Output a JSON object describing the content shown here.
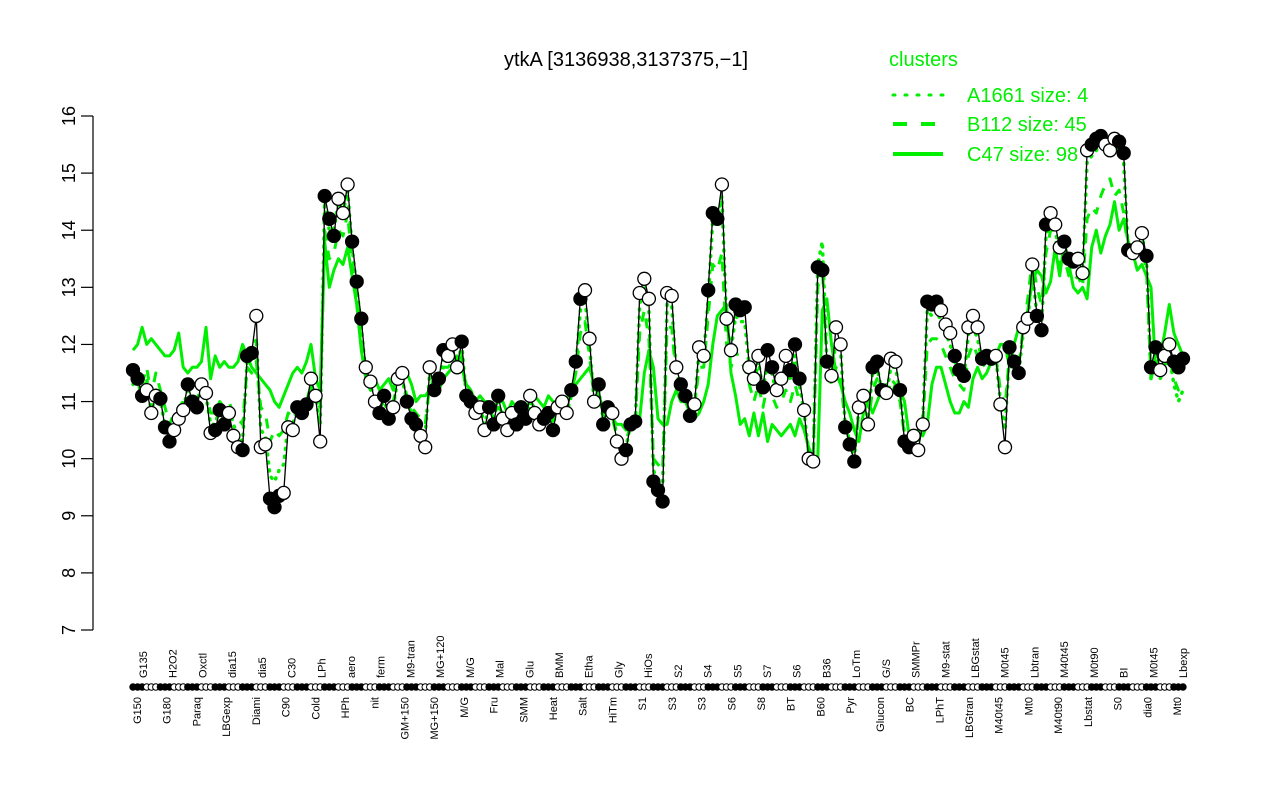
{
  "chart_data": {
    "type": "line",
    "title": "ytkA [3136938,3137375,−1]",
    "xlabel": "",
    "ylabel": "",
    "ylim": [
      7,
      16
    ],
    "yticks": [
      7,
      8,
      9,
      10,
      11,
      12,
      13,
      14,
      15,
      16
    ],
    "grid": false,
    "legend": {
      "title": "clusters",
      "position": "top-right",
      "color": "#00ee00",
      "entries": [
        {
          "label": "A1661 size: 4",
          "style": "dotted"
        },
        {
          "label": "B112 size: 45",
          "style": "dashed"
        },
        {
          "label": "C47 size: 98",
          "style": "solid"
        }
      ]
    },
    "x_labels_top": [
      "G135",
      "H2O2",
      "Oxctl",
      "dia15",
      "dia5",
      "C30",
      "LPh",
      "aero",
      "ferm",
      "M9-tran",
      "MG+120",
      "M/G",
      "Mal",
      "Glu",
      "BMM",
      "Etha",
      "Gly",
      "HiOs",
      "S2",
      "S4",
      "S5",
      "S7",
      "S6",
      "B36",
      "LoTm",
      "G/S",
      "SMMPr",
      "M9-stat",
      "LBGstat",
      "M0t45",
      "Lbtran",
      "M40t45",
      "M0t90",
      "BI",
      "M0t45",
      "Lbexp"
    ],
    "x_labels_bottom": [
      "G150",
      "G180",
      "Paraq",
      "LBGexp",
      "Diami",
      "C90",
      "Cold",
      "HPh",
      "nit",
      "GM+150",
      "MG+150",
      "M/G",
      "Fru",
      "SMM",
      "Heat",
      "Salt",
      "HiTm",
      "S1",
      "S3",
      "S3",
      "S6",
      "S8",
      "BT",
      "B60",
      "Pyr",
      "Glucon",
      "BC",
      "LPhT",
      "LBGtran",
      "M40t45",
      "Mt0",
      "M40t90",
      "Lbstat",
      "S0",
      "dia0",
      "Mt0"
    ],
    "series": [
      {
        "name": "ytkA expression",
        "color": "#000000",
        "values": [
          11.55,
          11.4,
          11.1,
          11.2,
          10.8,
          11.1,
          11.05,
          10.55,
          10.3,
          10.5,
          10.7,
          10.85,
          11.3,
          11.0,
          10.9,
          11.3,
          11.15,
          10.45,
          10.5,
          10.85,
          10.6,
          10.8,
          10.4,
          10.2,
          10.15,
          11.8,
          11.85,
          12.5,
          10.2,
          10.25,
          9.3,
          9.15,
          9.35,
          9.4,
          10.55,
          10.5,
          10.9,
          10.8,
          10.95,
          11.4,
          11.1,
          10.3,
          14.6,
          14.2,
          13.9,
          14.55,
          14.3,
          14.8,
          13.8,
          13.1,
          12.45,
          11.6,
          11.35,
          11.0,
          10.8,
          11.1,
          10.7,
          10.9,
          11.4,
          11.5,
          11.0,
          10.7,
          10.6,
          10.4,
          10.2,
          11.6,
          11.2,
          11.4,
          11.9,
          11.8,
          12.0,
          11.6,
          12.05,
          11.1,
          11.0,
          10.8,
          10.9,
          10.5,
          10.9,
          10.6,
          11.1,
          10.7,
          10.5,
          10.8,
          10.6,
          10.9,
          10.7,
          11.1,
          10.8,
          10.6,
          10.7,
          10.8,
          10.5,
          10.9,
          11.0,
          10.8,
          11.2,
          11.7,
          12.8,
          12.95,
          12.1,
          11.0,
          11.3,
          10.6,
          10.9,
          10.8,
          10.3,
          10.0,
          10.15,
          10.6,
          10.65,
          12.9,
          13.15,
          12.8,
          9.6,
          9.45,
          9.25,
          12.9,
          12.85,
          11.6,
          11.3,
          11.1,
          10.75,
          10.95,
          11.95,
          11.8,
          12.95,
          14.3,
          14.2,
          14.8,
          12.45,
          11.9,
          12.7,
          12.6,
          12.65,
          11.6,
          11.4,
          11.8,
          11.25,
          11.9,
          11.6,
          11.2,
          11.4,
          11.8,
          11.55,
          12.0,
          11.4,
          10.85,
          10.0,
          9.95,
          13.35,
          13.3,
          11.7,
          11.45,
          12.3,
          12.0,
          10.55,
          10.25,
          9.95,
          10.9,
          11.1,
          10.6,
          11.6,
          11.7,
          11.2,
          11.15,
          11.75,
          11.7,
          11.2,
          10.3,
          10.2,
          10.4,
          10.15,
          10.6,
          12.75,
          12.7,
          12.75,
          12.6,
          12.35,
          12.2,
          11.8,
          11.55,
          11.45,
          12.3,
          12.5,
          12.3,
          11.75,
          11.8,
          11.75,
          11.8,
          10.95,
          10.2,
          11.95,
          11.7,
          11.5,
          12.3,
          12.45,
          13.4,
          12.5,
          12.25,
          14.1,
          14.3,
          14.1,
          13.7,
          13.8,
          13.5,
          13.45,
          13.5,
          13.25,
          15.4,
          15.5,
          15.6,
          15.65,
          15.5,
          15.4,
          15.6,
          15.55,
          15.35,
          13.65,
          13.6,
          13.7,
          13.95,
          13.55,
          11.6,
          11.95,
          11.55,
          11.8,
          12.0,
          11.7,
          11.6,
          11.75
        ]
      },
      {
        "name": "C47 size: 98",
        "style": "solid",
        "color": "#00ee00",
        "values": [
          11.9,
          12.0,
          12.3,
          12.0,
          12.1,
          12.0,
          11.9,
          11.8,
          11.8,
          11.9,
          12.2,
          11.6,
          11.5,
          11.6,
          11.6,
          11.7,
          12.3,
          11.4,
          11.8,
          11.6,
          11.7,
          11.6,
          11.6,
          11.7,
          12.0,
          11.8,
          11.6,
          11.5,
          11.4,
          11.3,
          11.2,
          11.0,
          10.9,
          11.1,
          11.3,
          11.5,
          11.6,
          11.5,
          11.7,
          12.0,
          11.4,
          11.2,
          13.8,
          13.0,
          13.3,
          13.5,
          13.4,
          13.7,
          13.2,
          12.7,
          11.9,
          11.4,
          11.3,
          11.4,
          11.2,
          11.3,
          11.4,
          11.2,
          11.5,
          11.6,
          11.5,
          11.3,
          11.0,
          11.1,
          11.1,
          11.2,
          11.4,
          11.2,
          11.4,
          11.5,
          11.6,
          11.8,
          11.6,
          11.3,
          11.2,
          11.0,
          11.1,
          11.0,
          11.0,
          10.9,
          11.0,
          11.0,
          10.8,
          11.0,
          10.9,
          11.0,
          10.9,
          11.0,
          11.1,
          11.0,
          10.9,
          11.1,
          11.0,
          11.0,
          11.0,
          11.0,
          11.2,
          11.3,
          11.4,
          11.5,
          11.6,
          11.3,
          11.1,
          10.9,
          10.9,
          10.7,
          10.6,
          10.6,
          10.5,
          10.6,
          10.6,
          10.7,
          11.5,
          11.9,
          11.6,
          10.7,
          10.6,
          10.6,
          11.0,
          11.2,
          11.0,
          11.0,
          10.9,
          10.7,
          10.8,
          11.0,
          11.3,
          12.0,
          12.5,
          12.6,
          12.7,
          11.5,
          11.1,
          10.6,
          10.7,
          10.4,
          10.8,
          10.4,
          10.8,
          10.3,
          10.6,
          10.5,
          10.4,
          10.5,
          10.6,
          10.4,
          10.7,
          10.5,
          10.2,
          10.0,
          10.0,
          12.6,
          12.8,
          12.0,
          11.5,
          11.3,
          11.0,
          10.8,
          10.5,
          10.3,
          10.8,
          11.0,
          10.8,
          11.0,
          11.2,
          11.3,
          11.1,
          11.3,
          11.2,
          11.0,
          10.4,
          10.3,
          10.5,
          10.4,
          10.6,
          11.3,
          11.6,
          11.6,
          11.3,
          11.0,
          10.8,
          10.8,
          11.0,
          10.9,
          11.4,
          11.6,
          11.4,
          11.5,
          11.7,
          11.8,
          12.0,
          12.0,
          11.6,
          12.0,
          12.3,
          12.2,
          12.6,
          13.1,
          13.3,
          13.2,
          12.9,
          13.1,
          13.7,
          13.2,
          13.8,
          13.4,
          13.0,
          12.9,
          13.0,
          12.8,
          13.7,
          14.0,
          13.6,
          13.9,
          14.1,
          14.5,
          14.0,
          14.2,
          13.8,
          13.6,
          13.3,
          13.4,
          13.2,
          13.0,
          11.6,
          11.8,
          12.2,
          12.7,
          12.2,
          12.0,
          11.8,
          11.7
        ]
      },
      {
        "name": "B112 size: 45",
        "style": "dashed",
        "color": "#00ee00",
        "values": [
          11.4,
          11.5,
          11.3,
          11.6,
          11.1,
          11.5,
          11.2,
          10.9,
          10.6,
          10.8,
          10.9,
          11.0,
          11.3,
          11.0,
          11.1,
          11.4,
          11.2,
          10.8,
          10.8,
          11.0,
          10.9,
          11.0,
          10.8,
          10.7,
          10.6,
          11.6,
          11.5,
          11.7,
          10.9,
          10.8,
          10.3,
          10.5,
          10.4,
          10.5,
          10.8,
          10.7,
          10.9,
          10.9,
          11.0,
          11.3,
          11.0,
          10.9,
          14.0,
          13.5,
          13.6,
          14.0,
          13.9,
          14.3,
          13.4,
          12.8,
          12.0,
          11.4,
          11.2,
          11.1,
          11.0,
          11.1,
          11.0,
          11.0,
          11.3,
          11.4,
          11.1,
          10.9,
          10.8,
          10.7,
          10.6,
          11.3,
          11.1,
          11.3,
          11.6,
          11.6,
          11.7,
          11.5,
          11.8,
          11.1,
          11.0,
          10.9,
          10.9,
          10.8,
          10.9,
          10.7,
          10.9,
          10.8,
          10.7,
          10.9,
          10.8,
          10.9,
          10.8,
          11.0,
          10.9,
          10.8,
          10.8,
          10.9,
          10.7,
          10.9,
          10.9,
          10.8,
          11.1,
          11.5,
          12.2,
          12.4,
          11.8,
          11.1,
          11.1,
          10.7,
          10.8,
          10.7,
          10.4,
          10.2,
          10.3,
          10.6,
          10.6,
          12.2,
          12.6,
          12.1,
          10.0,
          9.9,
          9.8,
          12.3,
          12.3,
          11.4,
          11.2,
          11.0,
          10.8,
          10.9,
          11.6,
          11.6,
          12.5,
          13.4,
          13.3,
          13.6,
          12.0,
          11.6,
          11.9,
          11.7,
          11.6,
          11.3,
          11.0,
          11.3,
          10.9,
          11.3,
          11.1,
          10.9,
          11.0,
          11.2,
          11.0,
          11.3,
          11.0,
          10.6,
          10.1,
          10.0,
          13.0,
          13.4,
          11.6,
          11.3,
          11.6,
          11.4,
          10.6,
          10.3,
          10.1,
          10.8,
          10.9,
          10.6,
          11.2,
          11.4,
          11.1,
          11.0,
          11.4,
          11.3,
          11.0,
          10.4,
          10.3,
          10.4,
          10.3,
          10.6,
          12.0,
          12.1,
          12.1,
          12.0,
          11.8,
          11.6,
          11.4,
          11.3,
          11.2,
          11.8,
          12.0,
          11.8,
          11.6,
          11.7,
          11.7,
          11.8,
          11.2,
          10.9,
          11.8,
          11.7,
          11.6,
          12.3,
          12.8,
          13.5,
          13.0,
          12.7,
          13.6,
          14.0,
          13.9,
          13.4,
          13.5,
          13.2,
          13.1,
          13.2,
          13.0,
          14.2,
          14.4,
          14.3,
          14.6,
          14.8,
          14.9,
          14.6,
          14.7,
          14.3,
          13.6,
          13.5,
          13.6,
          13.7,
          13.3,
          11.4,
          11.7,
          11.5,
          11.7,
          11.8,
          11.4,
          11.2,
          11.3
        ]
      },
      {
        "name": "A1661 size: 4",
        "style": "dotted",
        "color": "#00ee00",
        "values": [
          11.3,
          11.4,
          11.0,
          11.4,
          10.8,
          11.2,
          11.0,
          10.6,
          10.4,
          10.6,
          10.7,
          10.9,
          11.2,
          11.0,
          11.0,
          11.3,
          11.1,
          10.6,
          10.6,
          10.9,
          10.7,
          10.9,
          10.6,
          10.4,
          10.3,
          11.7,
          11.8,
          12.1,
          10.5,
          10.4,
          9.7,
          9.6,
          9.8,
          9.9,
          10.6,
          10.6,
          10.9,
          10.8,
          10.9,
          11.3,
          11.1,
          10.6,
          14.5,
          14.0,
          14.0,
          14.5,
          14.3,
          14.7,
          13.7,
          13.0,
          12.3,
          11.5,
          11.3,
          11.0,
          10.9,
          11.0,
          10.8,
          10.9,
          11.4,
          11.4,
          11.0,
          10.8,
          10.7,
          10.5,
          10.4,
          11.5,
          11.2,
          11.3,
          11.8,
          11.7,
          11.9,
          11.6,
          12.0,
          11.1,
          11.0,
          10.9,
          10.9,
          10.6,
          10.9,
          10.7,
          11.0,
          10.7,
          10.6,
          10.8,
          10.7,
          10.9,
          10.7,
          11.0,
          10.8,
          10.7,
          10.7,
          10.8,
          10.6,
          10.9,
          11.0,
          10.8,
          11.1,
          11.6,
          12.6,
          12.8,
          12.0,
          11.0,
          11.2,
          10.7,
          10.9,
          10.8,
          10.4,
          10.1,
          10.2,
          10.6,
          10.6,
          12.7,
          13.0,
          12.6,
          9.8,
          9.6,
          9.5,
          12.7,
          12.7,
          11.5,
          11.3,
          11.1,
          10.8,
          10.9,
          11.9,
          11.8,
          12.8,
          14.2,
          14.1,
          14.6,
          12.4,
          11.9,
          12.5,
          12.4,
          12.4,
          11.6,
          11.3,
          11.7,
          11.2,
          11.7,
          11.5,
          11.1,
          11.3,
          11.6,
          11.4,
          11.8,
          11.3,
          10.8,
          10.1,
          10.0,
          13.4,
          13.8,
          11.7,
          11.4,
          12.1,
          11.9,
          10.6,
          10.3,
          10.0,
          10.9,
          11.0,
          10.7,
          11.5,
          11.6,
          11.2,
          11.1,
          11.6,
          11.6,
          11.2,
          10.4,
          10.3,
          10.5,
          10.3,
          10.7,
          12.6,
          12.5,
          12.6,
          12.4,
          12.2,
          12.0,
          11.7,
          11.5,
          11.4,
          12.2,
          12.3,
          12.1,
          11.7,
          11.8,
          11.7,
          11.8,
          11.0,
          10.5,
          11.9,
          11.7,
          11.5,
          12.2,
          12.4,
          13.3,
          12.5,
          12.3,
          13.9,
          14.2,
          14.0,
          13.6,
          13.7,
          13.4,
          13.4,
          13.4,
          13.2,
          15.2,
          15.3,
          15.4,
          15.5,
          15.4,
          15.3,
          15.5,
          15.4,
          15.2,
          13.6,
          13.6,
          13.7,
          13.9,
          13.5,
          11.4,
          11.8,
          11.4,
          11.6,
          11.8,
          11.3,
          11.0,
          11.2
        ]
      }
    ]
  }
}
